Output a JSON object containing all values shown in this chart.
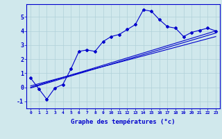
{
  "xlabel": "Graphe des températures (°c)",
  "ylabel": "",
  "background_color": "#d0e8ec",
  "line_color": "#0000cc",
  "xlim": [
    -0.5,
    23.5
  ],
  "ylim": [
    -1.5,
    5.9
  ],
  "xticks": [
    0,
    1,
    2,
    3,
    4,
    5,
    6,
    7,
    8,
    9,
    10,
    11,
    12,
    13,
    14,
    15,
    16,
    17,
    18,
    19,
    20,
    21,
    22,
    23
  ],
  "yticks": [
    -1,
    0,
    1,
    2,
    3,
    4,
    5
  ],
  "line1_x": [
    0,
    1,
    2,
    3,
    4,
    5,
    6,
    7,
    8,
    9,
    10,
    11,
    12,
    13,
    14,
    15,
    16,
    17,
    18,
    19,
    20,
    21,
    22,
    23
  ],
  "line1_y": [
    0.65,
    -0.1,
    -0.85,
    -0.05,
    0.2,
    1.3,
    2.55,
    2.65,
    2.55,
    3.25,
    3.6,
    3.75,
    4.1,
    4.45,
    5.5,
    5.4,
    4.8,
    4.3,
    4.2,
    3.6,
    3.9,
    4.05,
    4.2,
    4.0
  ],
  "line2_x": [
    0,
    23
  ],
  "line2_y": [
    0.0,
    4.0
  ],
  "line3_x": [
    0,
    23
  ],
  "line3_y": [
    -0.05,
    3.85
  ],
  "line4_x": [
    0,
    23
  ],
  "line4_y": [
    0.1,
    3.6
  ],
  "grid_color": "#b0d0d8",
  "marker": "D",
  "markersize": 2.0,
  "linewidth": 0.8,
  "xlabel_fontsize": 6.5,
  "xtick_fontsize": 4.5,
  "ytick_fontsize": 6.0
}
